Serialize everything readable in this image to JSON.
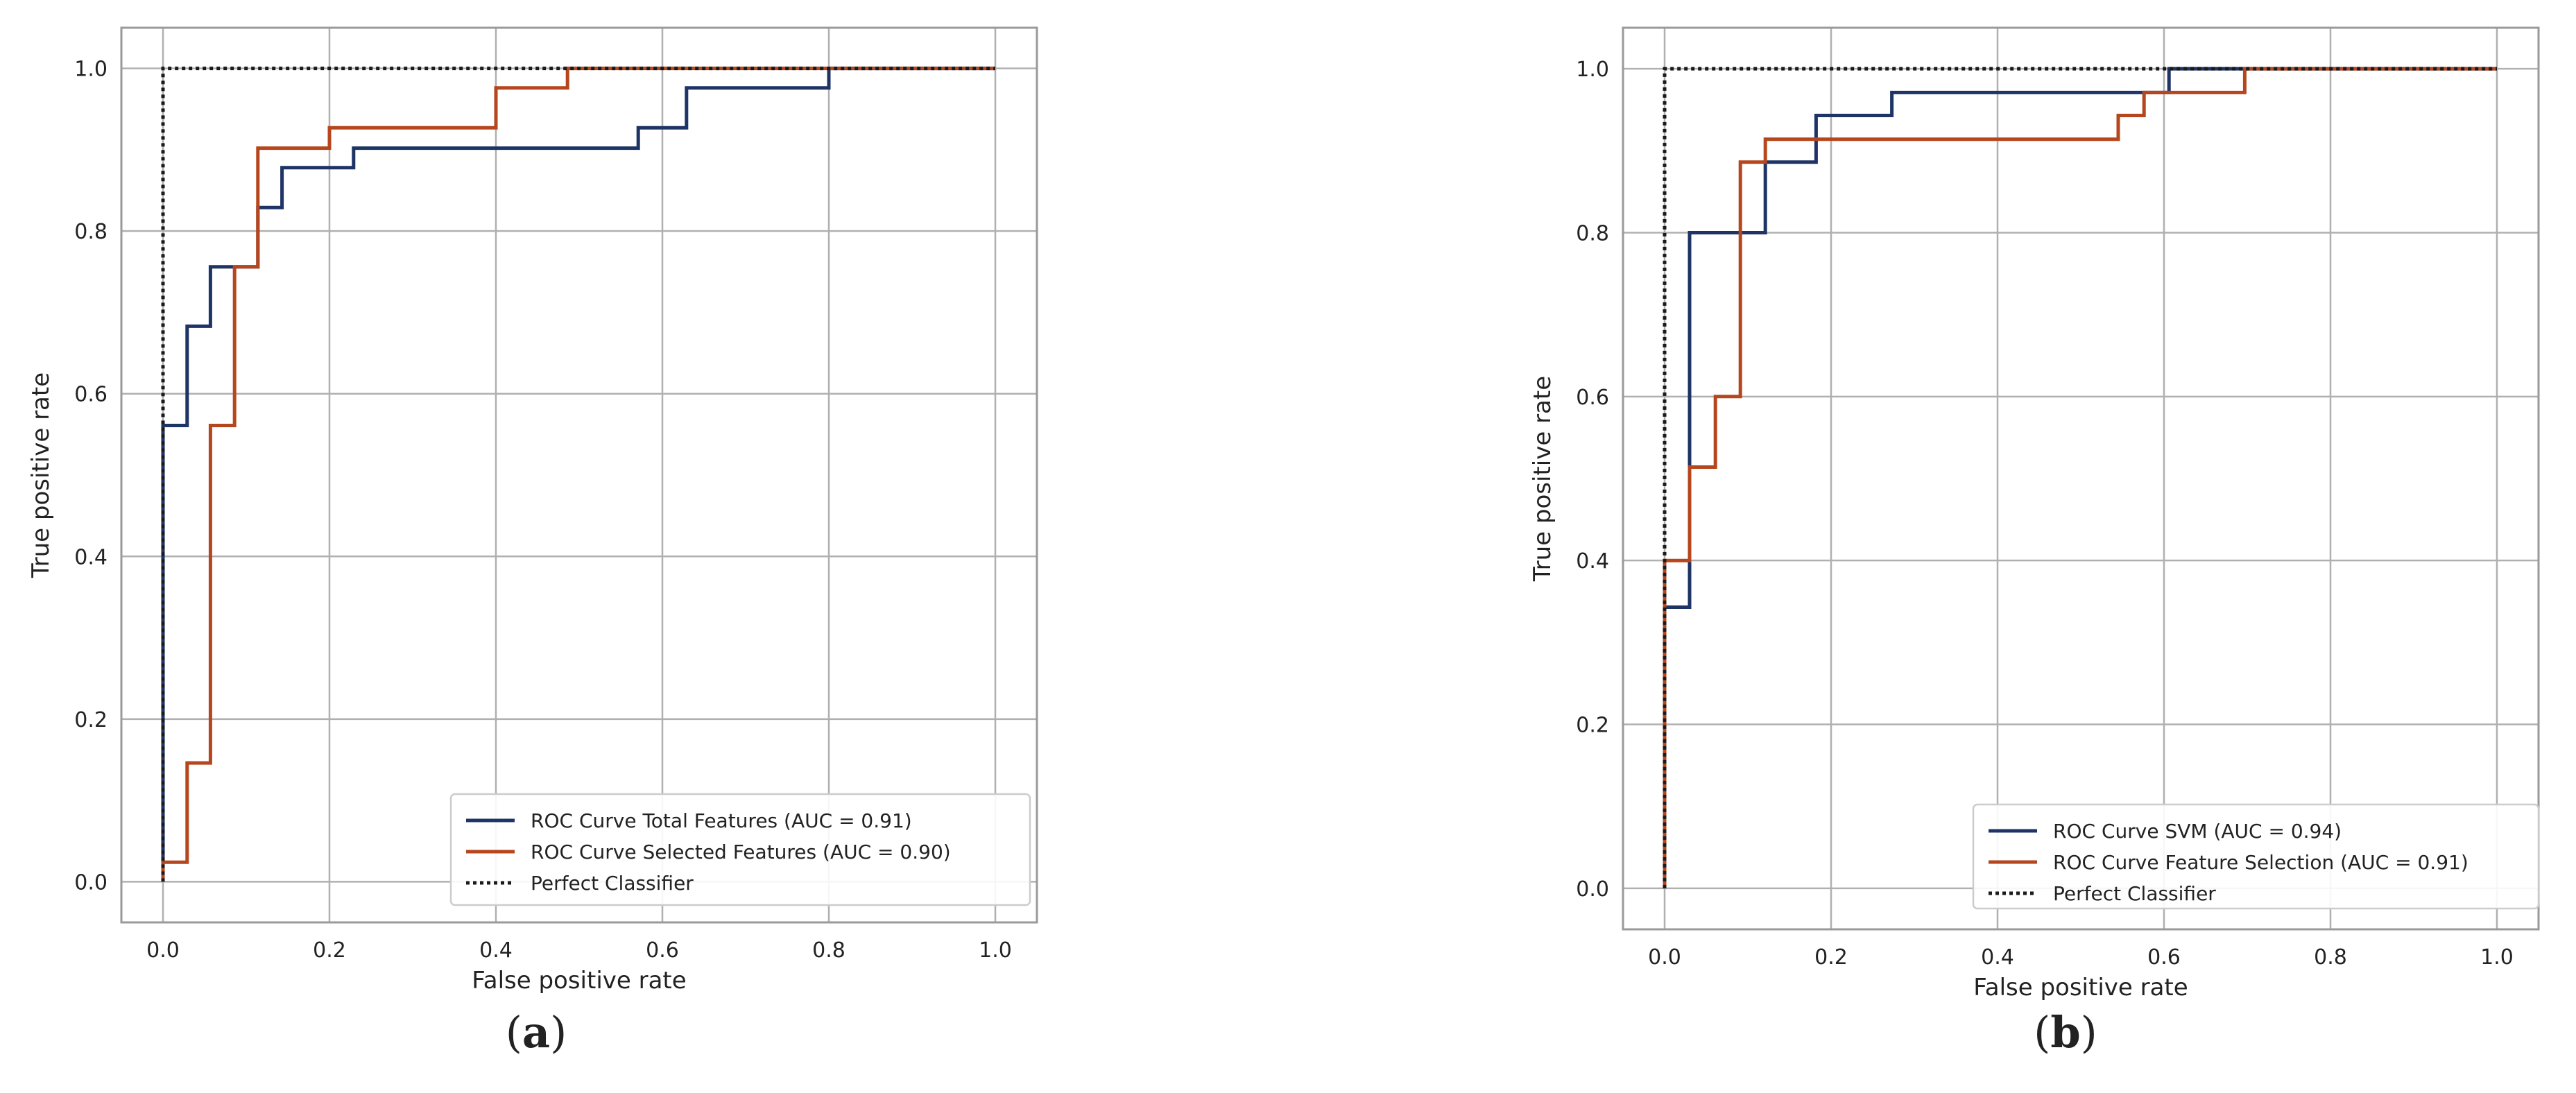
{
  "colors": {
    "series1": "#1f3466",
    "series2": "#b5461e",
    "perfect": "#1a1a1a",
    "grid": "#b0b0b0",
    "frame": "#9a9a9a"
  },
  "chart_data": [
    {
      "type": "line",
      "caption_letter": "a",
      "xlabel": "False positive rate",
      "ylabel": "True positive rate",
      "xlim": [
        -0.05,
        1.05
      ],
      "ylim": [
        -0.05,
        1.05
      ],
      "ticks": [
        "0.0",
        "0.2",
        "0.4",
        "0.6",
        "0.8",
        "1.0"
      ],
      "tick_values": [
        0,
        0.2,
        0.4,
        0.6,
        0.8,
        1.0
      ],
      "grid": true,
      "legend_position": "lower-right",
      "series": [
        {
          "name": "ROC Curve Total Features  (AUC = 0.91)",
          "color": "series1",
          "x": [
            0,
            0,
            0.029,
            0.029,
            0.057,
            0.057,
            0.114,
            0.114,
            0.143,
            0.143,
            0.229,
            0.229,
            0.571,
            0.571,
            0.629,
            0.629,
            0.8,
            0.8,
            1.0
          ],
          "y": [
            0,
            0.561,
            0.561,
            0.683,
            0.683,
            0.756,
            0.756,
            0.829,
            0.829,
            0.878,
            0.878,
            0.902,
            0.902,
            0.927,
            0.927,
            0.976,
            0.976,
            1.0,
            1.0
          ]
        },
        {
          "name": "ROC Curve Selected Features (AUC = 0.90)",
          "color": "series2",
          "x": [
            0,
            0,
            0.029,
            0.029,
            0.057,
            0.057,
            0.086,
            0.086,
            0.114,
            0.114,
            0.2,
            0.2,
            0.4,
            0.4,
            0.486,
            0.486,
            1.0
          ],
          "y": [
            0,
            0.024,
            0.024,
            0.146,
            0.146,
            0.561,
            0.561,
            0.756,
            0.756,
            0.902,
            0.902,
            0.927,
            0.927,
            0.976,
            0.976,
            1.0,
            1.0
          ]
        },
        {
          "name": "Perfect Classifier",
          "color": "perfect",
          "dashed": true,
          "x": [
            0,
            0,
            1.0
          ],
          "y": [
            0,
            1.0,
            1.0
          ]
        }
      ]
    },
    {
      "type": "line",
      "caption_letter": "b",
      "xlabel": "False positive rate",
      "ylabel": "True positive rate",
      "xlim": [
        -0.05,
        1.05
      ],
      "ylim": [
        -0.05,
        1.05
      ],
      "ticks": [
        "0.0",
        "0.2",
        "0.4",
        "0.6",
        "0.8",
        "1.0"
      ],
      "tick_values": [
        0,
        0.2,
        0.4,
        0.6,
        0.8,
        1.0
      ],
      "grid": true,
      "legend_position": "lower-right",
      "series": [
        {
          "name": "ROC Curve SVM  (AUC = 0.94)",
          "color": "series1",
          "x": [
            0,
            0,
            0.03,
            0.03,
            0.121,
            0.121,
            0.182,
            0.182,
            0.273,
            0.273,
            0.606,
            0.606,
            1.0
          ],
          "y": [
            0,
            0.343,
            0.343,
            0.8,
            0.8,
            0.886,
            0.886,
            0.943,
            0.943,
            0.971,
            0.971,
            1.0,
            1.0
          ]
        },
        {
          "name": "ROC Curve Feature Selection (AUC = 0.91)",
          "color": "series2",
          "x": [
            0,
            0,
            0.03,
            0.03,
            0.061,
            0.061,
            0.091,
            0.091,
            0.121,
            0.121,
            0.545,
            0.545,
            0.576,
            0.576,
            0.697,
            0.697,
            1.0
          ],
          "y": [
            0,
            0.4,
            0.4,
            0.514,
            0.514,
            0.6,
            0.6,
            0.886,
            0.886,
            0.914,
            0.914,
            0.943,
            0.943,
            0.971,
            0.971,
            1.0,
            1.0
          ]
        },
        {
          "name": "Perfect Classifier",
          "color": "perfect",
          "dashed": true,
          "x": [
            0,
            0,
            1.0
          ],
          "y": [
            0,
            1.0,
            1.0
          ]
        }
      ]
    }
  ]
}
